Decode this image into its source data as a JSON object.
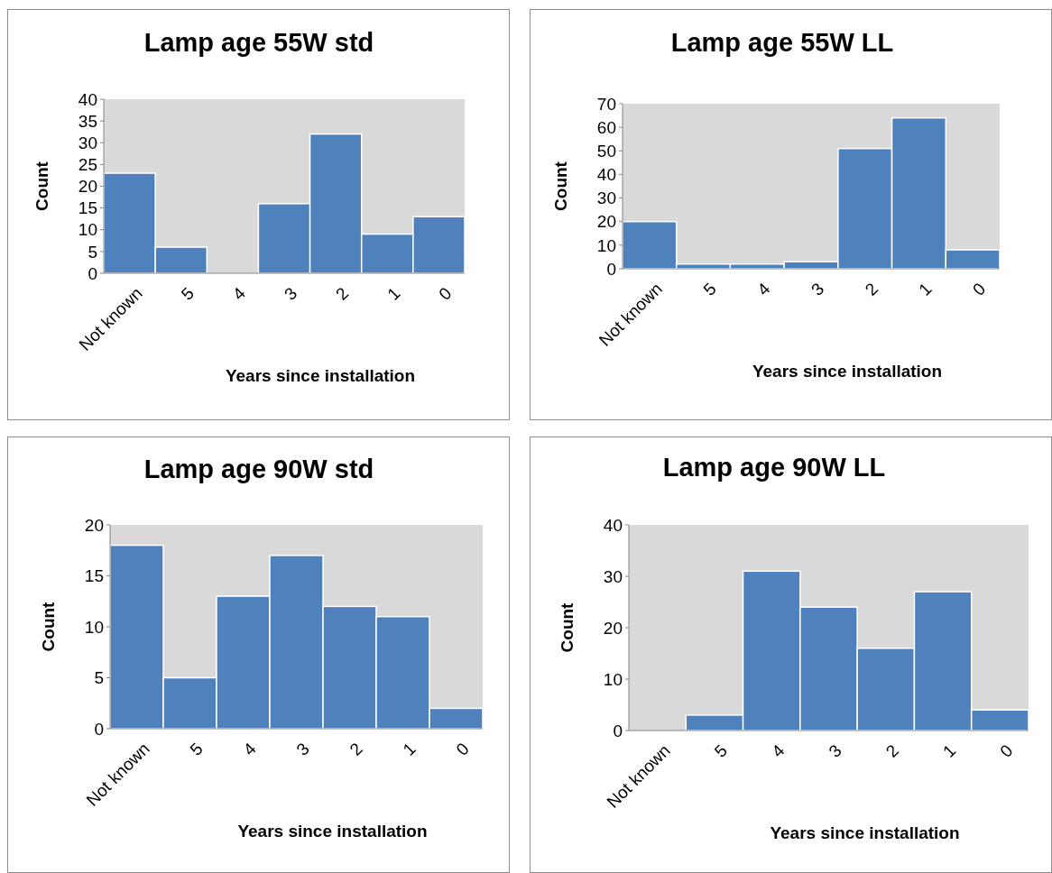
{
  "chart_data": [
    {
      "type": "bar",
      "title": "Lamp age 55W std",
      "xlabel": "Years since installation",
      "ylabel": "Count",
      "categories": [
        "Not known",
        "5",
        "4",
        "3",
        "2",
        "1",
        "0"
      ],
      "values": [
        23,
        6,
        0,
        16,
        32,
        9,
        13
      ],
      "color": "#4f81bd",
      "ylim": [
        0,
        40
      ],
      "yticks": [
        0,
        5,
        10,
        15,
        20,
        25,
        30,
        35,
        40
      ],
      "grid": false
    },
    {
      "type": "bar",
      "title": "Lamp age 55W LL",
      "xlabel": "Years since installation",
      "ylabel": "Count",
      "categories": [
        "Not known",
        "5",
        "4",
        "3",
        "2",
        "1",
        "0"
      ],
      "values": [
        20,
        2,
        2,
        3,
        51,
        64,
        8
      ],
      "color": "#4f81bd",
      "ylim": [
        0,
        70
      ],
      "yticks": [
        0,
        10,
        20,
        30,
        40,
        50,
        60,
        70
      ],
      "grid": false
    },
    {
      "type": "bar",
      "title": "Lamp age 90W std",
      "xlabel": "Years since installation",
      "ylabel": "Count",
      "categories": [
        "Not known",
        "5",
        "4",
        "3",
        "2",
        "1",
        "0"
      ],
      "values": [
        18,
        5,
        13,
        17,
        12,
        11,
        2
      ],
      "color": "#4f81bd",
      "ylim": [
        0,
        20
      ],
      "yticks": [
        0,
        5,
        10,
        15,
        20
      ],
      "grid": false
    },
    {
      "type": "bar",
      "title": "Lamp age 90W LL",
      "xlabel": "Years since installation",
      "ylabel": "Count",
      "categories": [
        "Not known",
        "5",
        "4",
        "3",
        "2",
        "1",
        "0"
      ],
      "values": [
        0,
        3,
        31,
        24,
        16,
        27,
        4
      ],
      "color": "#4f81bd",
      "ylim": [
        0,
        40
      ],
      "yticks": [
        0,
        10,
        20,
        30,
        40
      ],
      "grid": false
    }
  ]
}
